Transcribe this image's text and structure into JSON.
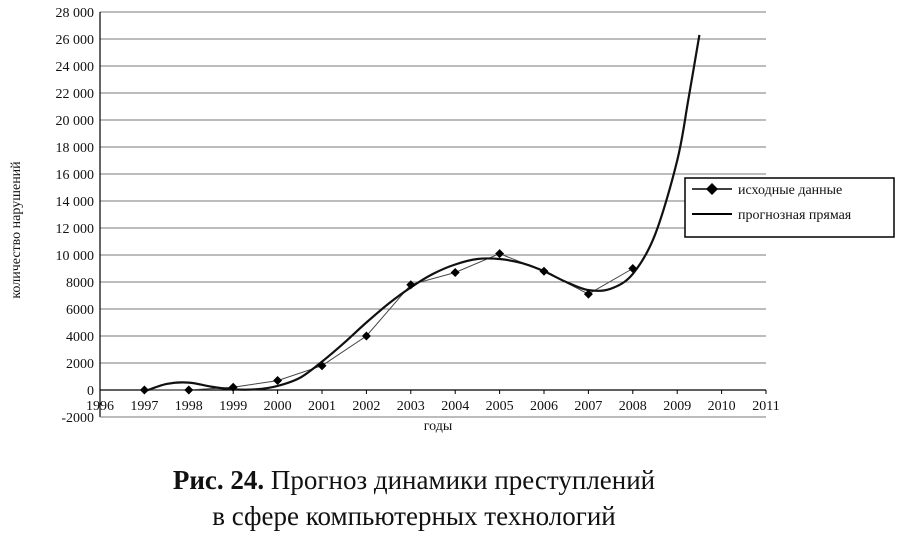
{
  "chart_data": {
    "type": "line",
    "xlabel": "годы",
    "ylabel": "количество нарушений",
    "xlim": [
      1996,
      2011
    ],
    "ylim": [
      -2000,
      28000
    ],
    "x_ticks": [
      "1996",
      "1997",
      "1998",
      "1999",
      "2000",
      "2001",
      "2002",
      "2003",
      "2004",
      "2005",
      "2006",
      "2007",
      "2008",
      "2009",
      "2010",
      "2011"
    ],
    "y_ticks": [
      "-2000",
      "0",
      "2000",
      "4000",
      "6000",
      "8000",
      "10 000",
      "12 000",
      "14 000",
      "16 000",
      "18 000",
      "20 000",
      "22 000",
      "24 000",
      "26 000",
      "28 000"
    ],
    "grid": "horizontal",
    "legend_position": "right",
    "series": [
      {
        "name": "исходные данные",
        "style": "line-with-diamond-markers",
        "color": "#000000",
        "x": [
          1997,
          1998,
          1999,
          2000,
          2001,
          2002,
          2003,
          2004,
          2005,
          2006,
          2007,
          2008
        ],
        "y": [
          0,
          0,
          200,
          700,
          1800,
          4000,
          7800,
          8700,
          10100,
          8800,
          7100,
          9000
        ]
      },
      {
        "name": "прогнозная прямая",
        "style": "smooth-line",
        "color": "#000000",
        "x": [
          1997,
          1997.5,
          1998,
          1998.5,
          1999,
          1999.5,
          2000,
          2000.5,
          2001,
          2001.5,
          2002,
          2002.5,
          2003,
          2003.5,
          2004,
          2004.5,
          2005,
          2005.5,
          2006,
          2006.5,
          2007,
          2007.5,
          2008,
          2008.5,
          2009,
          2009.25,
          2009.5
        ],
        "y": [
          -100,
          450,
          550,
          250,
          50,
          50,
          300,
          900,
          2100,
          3500,
          5000,
          6400,
          7600,
          8600,
          9300,
          9700,
          9700,
          9400,
          8800,
          8000,
          7400,
          7500,
          8600,
          11500,
          17000,
          21500,
          26300
        ]
      }
    ]
  },
  "caption": {
    "label": "Рис. 24.",
    "line1": "Прогноз динамики преступлений",
    "line2": "в сфере компьютерных технологий"
  }
}
